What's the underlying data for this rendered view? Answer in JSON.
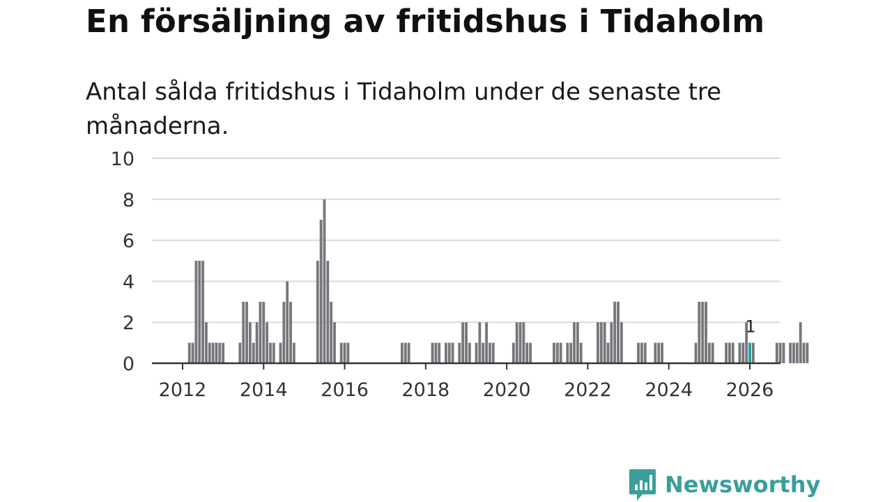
{
  "title": "En försäljning av fritidshus i Tidaholm",
  "subtitle": "Antal sålda fritidshus i Tidaholm under de senaste tre månaderna.",
  "brand": {
    "name": "Newsworthy",
    "icon": "newsworthy-logo-icon",
    "color": "#3a9e9a"
  },
  "colors": {
    "bar": "#78767c",
    "highlight": "#1a9e9a",
    "grid": "#d9d9d9",
    "axis": "#333333"
  },
  "chart_data": {
    "type": "bar",
    "title": "En försäljning av fritidshus i Tidaholm",
    "subtitle": "Antal sålda fritidshus i Tidaholm under de senaste tre månaderna.",
    "xlabel": "",
    "ylabel": "",
    "ylim": [
      0,
      10
    ],
    "yticks": [
      0,
      2,
      4,
      6,
      8,
      10
    ],
    "xticks": [
      "2012",
      "2014",
      "2016",
      "2018",
      "2020",
      "2022",
      "2024",
      "2026"
    ],
    "x_range": [
      "2012-01",
      "2026-01"
    ],
    "grid": true,
    "frequency": "monthly",
    "start": "2011-11",
    "values": [
      0,
      0,
      0,
      0,
      1,
      1,
      5,
      5,
      5,
      2,
      1,
      1,
      1,
      1,
      1,
      0,
      0,
      0,
      0,
      1,
      3,
      3,
      2,
      1,
      2,
      3,
      3,
      2,
      1,
      1,
      0,
      1,
      3,
      4,
      3,
      1,
      0,
      0,
      0,
      0,
      0,
      0,
      5,
      7,
      8,
      5,
      3,
      2,
      0,
      1,
      1,
      1,
      0,
      0,
      0,
      0,
      0,
      0,
      0,
      0,
      0,
      0,
      0,
      0,
      0,
      0,
      0,
      1,
      1,
      1,
      0,
      0,
      0,
      0,
      0,
      0,
      1,
      1,
      1,
      0,
      1,
      1,
      1,
      0,
      1,
      2,
      2,
      1,
      0,
      1,
      2,
      1,
      2,
      1,
      1,
      0,
      0,
      0,
      0,
      0,
      1,
      2,
      2,
      2,
      1,
      1,
      0,
      0,
      0,
      0,
      0,
      0,
      1,
      1,
      1,
      0,
      1,
      1,
      2,
      2,
      1,
      0,
      0,
      0,
      0,
      2,
      2,
      2,
      1,
      2,
      3,
      3,
      2,
      0,
      0,
      0,
      0,
      1,
      1,
      1,
      0,
      0,
      1,
      1,
      1,
      0,
      0,
      0,
      0,
      0,
      0,
      0,
      0,
      0,
      1,
      3,
      3,
      3,
      1,
      1,
      0,
      0,
      0,
      1,
      1,
      1,
      0,
      1,
      1,
      2,
      1,
      1,
      0,
      0,
      0,
      0,
      0,
      0,
      1,
      1,
      1,
      0,
      1,
      1,
      1,
      2,
      1,
      1
    ],
    "highlight": {
      "index": 170,
      "label": "1"
    }
  }
}
